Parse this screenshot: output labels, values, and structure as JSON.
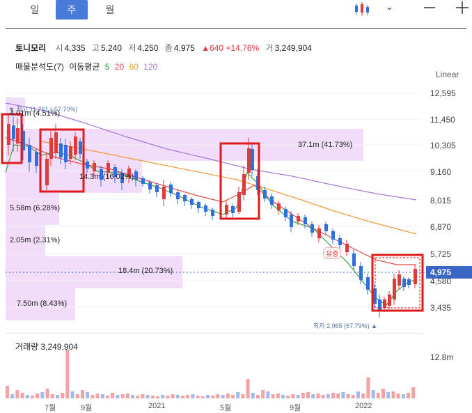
{
  "tabs": [
    {
      "label": "일"
    },
    {
      "label": "주"
    },
    {
      "label": "월"
    }
  ],
  "toolbar": {
    "chart_type_icon": "candlestick-icon",
    "dropdown_icon": "chevron-down-icon",
    "minus_icon": "minus-icon",
    "plus_icon": "plus-icon"
  },
  "stock": {
    "name": "토니모리",
    "open_label": "시",
    "open": "4,335",
    "high_label": "고",
    "high": "5,240",
    "low_label": "저",
    "low": "4,250",
    "close_label": "종",
    "close": "4,975",
    "change": "▲640",
    "change_pct": "+14.76%",
    "volume_label": "거",
    "volume": "3,249,904"
  },
  "indicators": {
    "vp_label": "매물분석도(7)",
    "ma_label": "이동평균",
    "ma": [
      {
        "period": "5",
        "color": "#3aa43a"
      },
      {
        "period": "20",
        "color": "#e24a4a"
      },
      {
        "period": "60",
        "color": "#f09a3a"
      },
      {
        "period": "120",
        "color": "#a878d8"
      }
    ]
  },
  "scale_mode": "Linear",
  "y_axis": [
    "12,595",
    "11,450",
    "10,305",
    "9,160",
    "8,015",
    "6,870",
    "5,725",
    "4,580",
    "3,435"
  ],
  "current_price": "4,975",
  "x_axis": [
    "7월",
    "9월",
    "2021",
    "5월",
    "9월",
    "2022"
  ],
  "volume_profile": [
    {
      "text": "4.01m (4.51%)"
    },
    {
      "text": "37.1m (41.73%)"
    },
    {
      "text": "14.3m (16.02%)"
    },
    {
      "text": "5.58m (6.28%)"
    },
    {
      "text": "2.05m (2.31%)"
    },
    {
      "text": "18.4m (20.73%)"
    },
    {
      "text": "7.50m (8.43%)"
    }
  ],
  "annotations": {
    "high": "▼ 최고 11,761 (-57.70%)",
    "low": "최저 2,965 (67.79%) ▲",
    "event": "유증"
  },
  "volume_panel": {
    "label": "거래량 3,249,904",
    "axis": "12.8m"
  },
  "colors": {
    "up": "#e03b3b",
    "down": "#2f6fe0",
    "accent": "#4a7ad8",
    "profile": "#f1dcfa",
    "highlight": "#e0191d"
  }
}
